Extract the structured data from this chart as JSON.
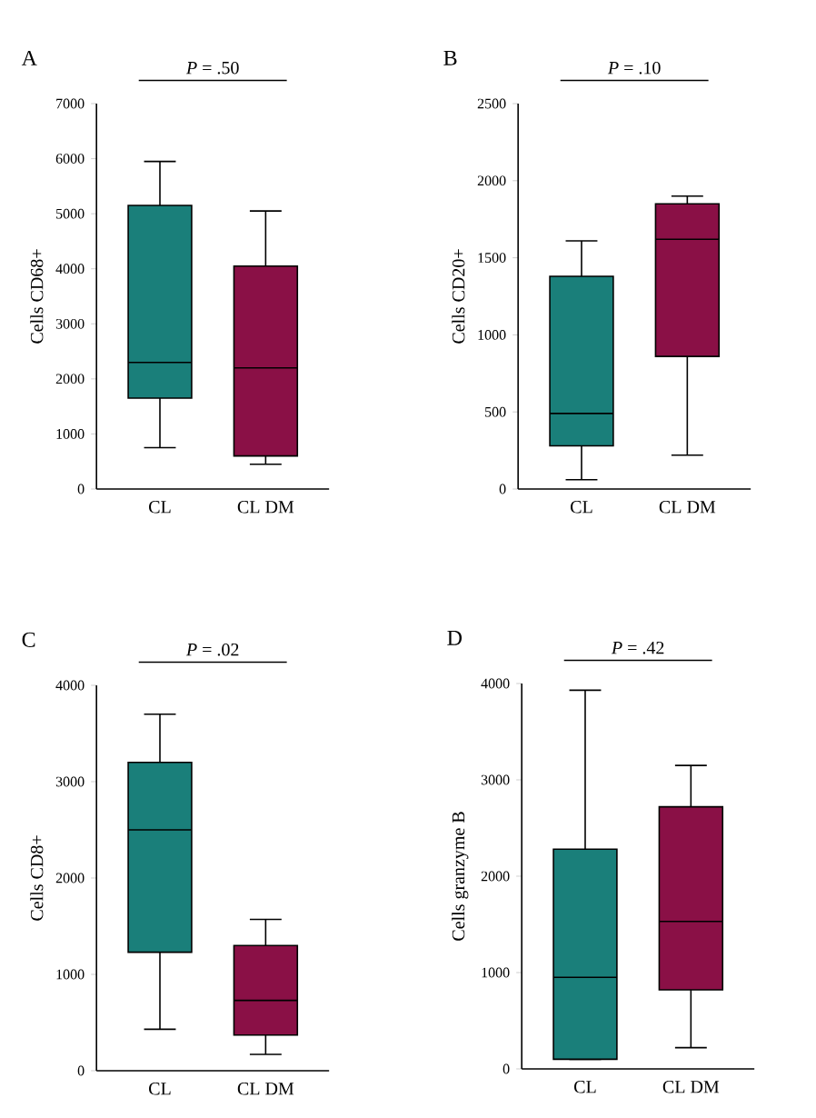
{
  "chart_data": [
    {
      "type": "box",
      "title": "A",
      "categories": [
        "CL",
        "CL DM"
      ],
      "ylabel": "Cells CD68+",
      "colors": [
        "#1a7f7a",
        "#8a1046"
      ],
      "ylim": [
        0,
        7000
      ],
      "yticks": [
        0,
        1000,
        2000,
        3000,
        4000,
        5000,
        6000,
        7000
      ],
      "annotations": [
        "*P* = .50"
      ],
      "boxes": [
        {
          "low": 750,
          "q1": 1650,
          "median": 2300,
          "q3": 5150,
          "high": 5950
        },
        {
          "low": 450,
          "q1": 600,
          "median": 2200,
          "q3": 4050,
          "high": 5050
        }
      ]
    },
    {
      "type": "box",
      "title": "B",
      "categories": [
        "CL",
        "CL DM"
      ],
      "ylabel": "Cells CD20+",
      "colors": [
        "#1a7f7a",
        "#8a1046"
      ],
      "ylim": [
        0,
        2500
      ],
      "yticks": [
        0,
        500,
        1000,
        1500,
        2000,
        2500
      ],
      "annotations": [
        "*P* = .10"
      ],
      "boxes": [
        {
          "low": 60,
          "q1": 280,
          "median": 490,
          "q3": 1380,
          "high": 1610
        },
        {
          "low": 220,
          "q1": 860,
          "median": 1620,
          "q3": 1850,
          "high": 1900
        }
      ]
    },
    {
      "type": "box",
      "title": "C",
      "categories": [
        "CL",
        "CL DM"
      ],
      "ylabel": "Cells CD8+",
      "colors": [
        "#1a7f7a",
        "#8a1046"
      ],
      "ylim": [
        0,
        4000
      ],
      "yticks": [
        0,
        1000,
        2000,
        3000,
        4000
      ],
      "annotations": [
        "*P* = .02"
      ],
      "boxes": [
        {
          "low": 430,
          "q1": 1230,
          "median": 2500,
          "q3": 3200,
          "high": 3700
        },
        {
          "low": 170,
          "q1": 370,
          "median": 730,
          "q3": 1300,
          "high": 1570
        }
      ]
    },
    {
      "type": "box",
      "title": "D",
      "categories": [
        "CL",
        "CL DM"
      ],
      "ylabel": "Cells granzyme B",
      "colors": [
        "#1a7f7a",
        "#8a1046"
      ],
      "ylim": [
        0,
        4000
      ],
      "yticks": [
        0,
        1000,
        2000,
        3000,
        4000
      ],
      "annotations": [
        "*P* = .42"
      ],
      "boxes": [
        {
          "low": 100,
          "q1": 100,
          "median": 950,
          "q3": 2280,
          "high": 3930
        },
        {
          "low": 220,
          "q1": 820,
          "median": 1530,
          "q3": 2720,
          "high": 3150
        }
      ]
    }
  ]
}
